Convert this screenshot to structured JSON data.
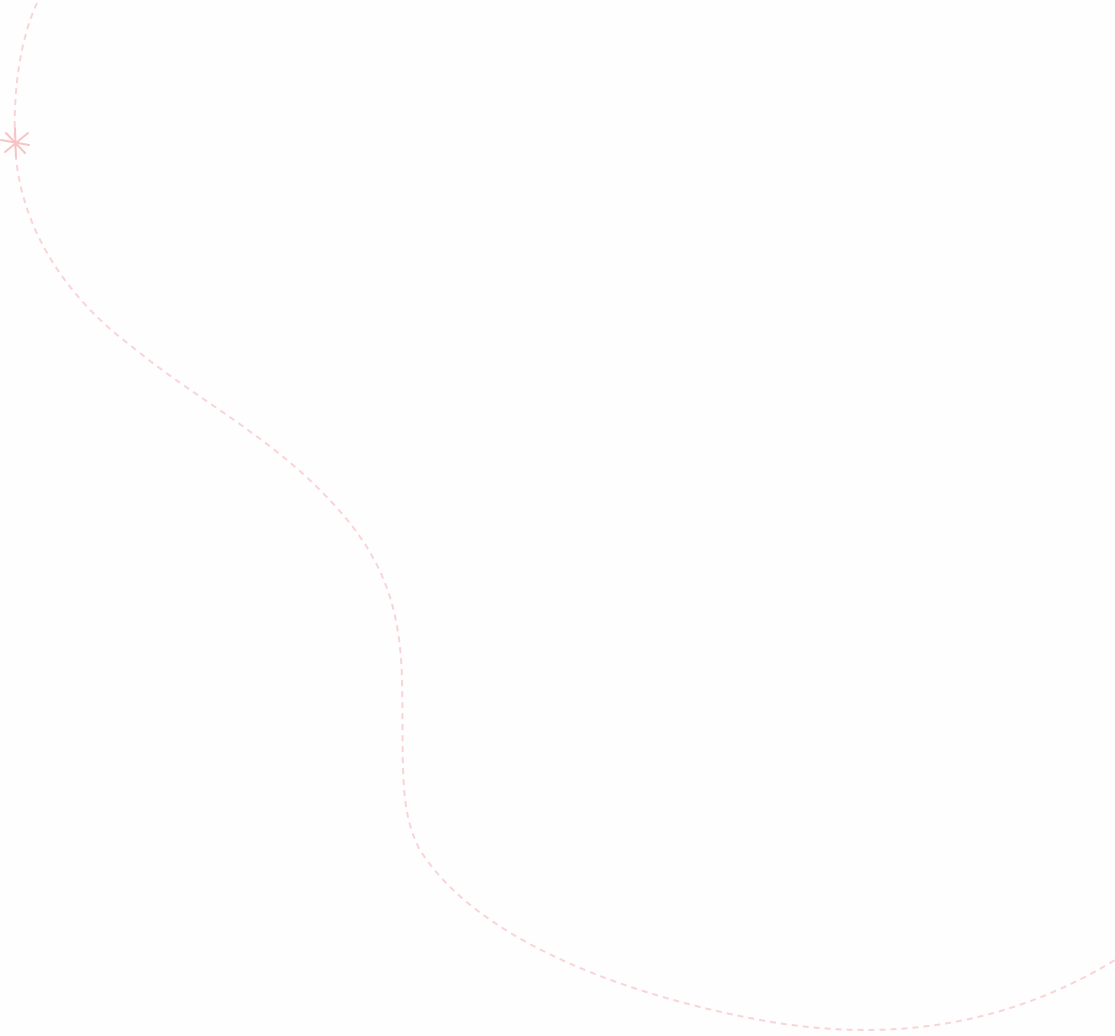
{
  "decoration": {
    "path_color": "#f9d4d6",
    "sparkle_color": "#f7c4c6",
    "sparkle_icon": "sparkle-icon"
  }
}
